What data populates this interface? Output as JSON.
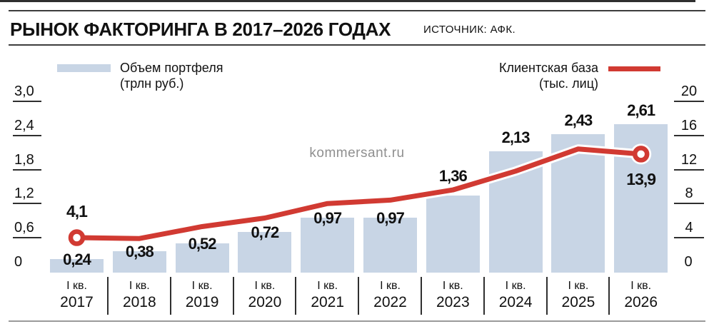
{
  "header": {
    "title": "РЫНОК ФАКТОРИНГА В 2017–2026 ГОДАХ",
    "source": "ИСТОЧНИК: АФК."
  },
  "legend": {
    "bar_label": "Объем портфеля",
    "bar_sublabel": "(трлн руб.)",
    "line_label": "Клиентская база",
    "line_sublabel": "(тыс. лиц)"
  },
  "watermark": "kommersant.ru",
  "colors": {
    "bar_fill": "#c8d5e5",
    "line": "#d13a32",
    "axis": "#2f2f2f",
    "rule_dark": "#3d3d3d",
    "rule_light": "#9a9a9a",
    "watermark": "#8f8f8f",
    "text": "#111111",
    "casing": "#ffffff"
  },
  "chart_data": {
    "type": "bar+line combo",
    "title": "РЫНОК ФАКТОРИНГА В 2017–2026 ГОДАХ",
    "categories": [
      {
        "quarter": "I кв.",
        "year": "2017"
      },
      {
        "quarter": "I кв.",
        "year": "2018"
      },
      {
        "quarter": "I кв.",
        "year": "2019"
      },
      {
        "quarter": "I кв.",
        "year": "2020"
      },
      {
        "quarter": "I кв.",
        "year": "2021"
      },
      {
        "quarter": "I кв.",
        "year": "2022"
      },
      {
        "quarter": "I кв.",
        "year": "2023"
      },
      {
        "quarter": "I кв.",
        "year": "2024"
      },
      {
        "quarter": "I кв.",
        "year": "2025"
      },
      {
        "quarter": "I кв.",
        "year": "2026"
      }
    ],
    "bar_series": {
      "name": "Объем портфеля (трлн руб.)",
      "axis": "left",
      "values": [
        0.24,
        0.38,
        0.52,
        0.72,
        0.97,
        0.97,
        1.36,
        2.13,
        2.43,
        2.61
      ],
      "labels": [
        "0,24",
        "0,38",
        "0,52",
        "0,72",
        "0,97",
        "0,97",
        "1,36",
        "2,13",
        "2,43",
        "2,61"
      ]
    },
    "line_series": {
      "name": "Клиентская база (тыс. лиц)",
      "axis": "right",
      "values": [
        4.1,
        4.0,
        5.4,
        6.4,
        8.1,
        8.5,
        9.7,
        11.9,
        14.5,
        13.9
      ],
      "labeled_points": [
        {
          "index": 0,
          "label": "4,1",
          "position": "above"
        },
        {
          "index": 9,
          "label": "13,9",
          "position": "below"
        }
      ],
      "marker_indices": [
        0,
        9
      ]
    },
    "left_axis": {
      "ticks": [
        "0",
        "0,6",
        "1,2",
        "1,8",
        "2,4",
        "3,0"
      ],
      "values": [
        0,
        0.6,
        1.2,
        1.8,
        2.4,
        3.0
      ],
      "max": 3.0
    },
    "right_axis": {
      "ticks": [
        "0",
        "4",
        "8",
        "12",
        "16",
        "20"
      ],
      "values": [
        0,
        4,
        8,
        12,
        16,
        20
      ],
      "max": 20
    },
    "grid": "side ticks only, no gridlines across plot",
    "legend_position": "top",
    "value_label_straddle": [
      true,
      true,
      true,
      true,
      true,
      true,
      false,
      false,
      false,
      false
    ]
  }
}
